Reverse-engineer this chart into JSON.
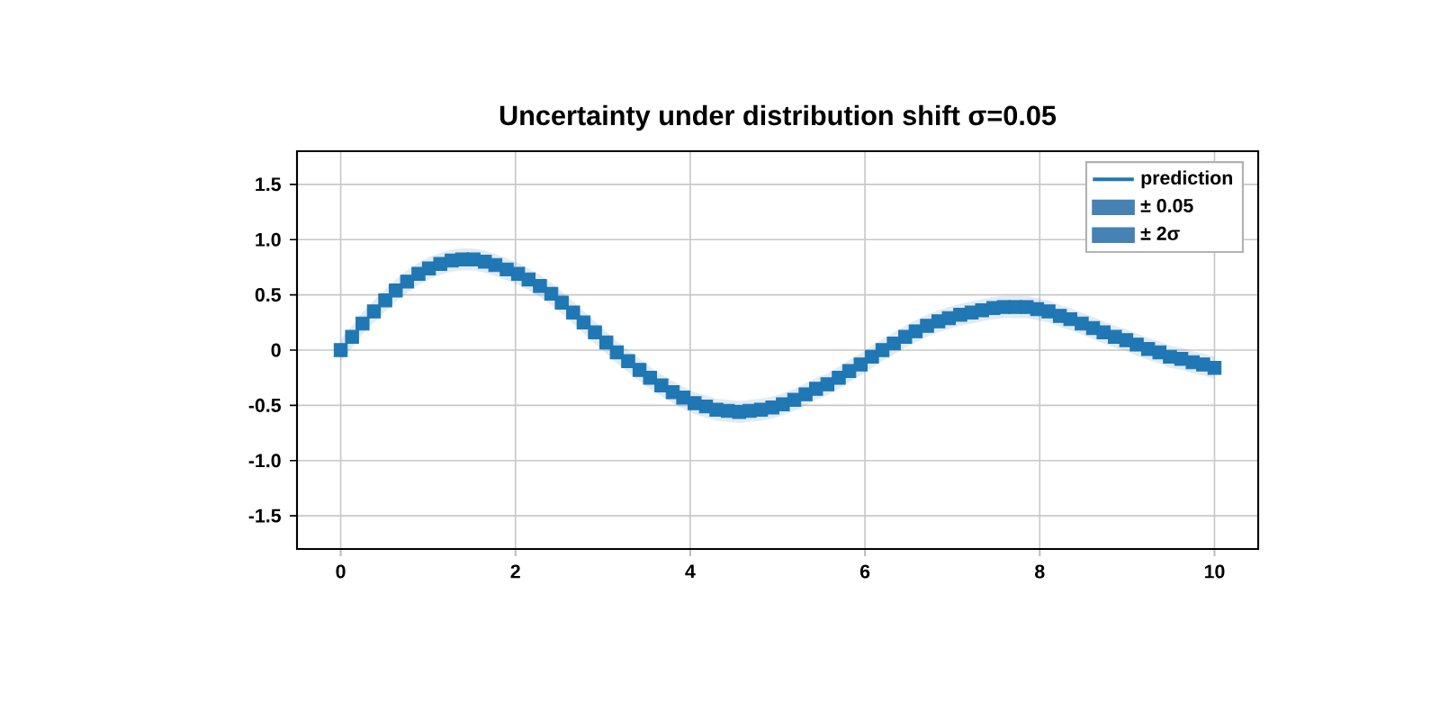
{
  "chart_data": {
    "type": "scatter",
    "title": "Uncertainty under distribution shift  σ=0.05",
    "x": [
      0,
      0.13,
      0.25,
      0.38,
      0.51,
      0.63,
      0.76,
      0.89,
      1.01,
      1.14,
      1.27,
      1.39,
      1.52,
      1.65,
      1.77,
      1.9,
      2.03,
      2.15,
      2.28,
      2.41,
      2.53,
      2.66,
      2.78,
      2.91,
      3.04,
      3.16,
      3.29,
      3.42,
      3.54,
      3.67,
      3.8,
      3.92,
      4.05,
      4.18,
      4.3,
      4.43,
      4.56,
      4.68,
      4.81,
      4.94,
      5.06,
      5.19,
      5.32,
      5.44,
      5.57,
      5.7,
      5.82,
      5.95,
      6.08,
      6.2,
      6.33,
      6.46,
      6.58,
      6.71,
      6.84,
      6.96,
      7.09,
      7.22,
      7.34,
      7.47,
      7.59,
      7.72,
      7.85,
      7.97,
      8.1,
      8.23,
      8.35,
      8.48,
      8.61,
      8.73,
      8.86,
      8.99,
      9.11,
      9.24,
      9.37,
      9.49,
      9.62,
      9.75,
      9.87,
      10
    ],
    "series": [
      {
        "name": "prediction",
        "color": "#1f77b4",
        "marker": "square",
        "values": [
          0,
          0.12,
          0.24,
          0.35,
          0.45,
          0.54,
          0.62,
          0.69,
          0.74,
          0.78,
          0.81,
          0.82,
          0.82,
          0.8,
          0.77,
          0.73,
          0.69,
          0.64,
          0.58,
          0.51,
          0.43,
          0.34,
          0.25,
          0.16,
          0.07,
          -0.02,
          -0.1,
          -0.18,
          -0.25,
          -0.32,
          -0.38,
          -0.43,
          -0.48,
          -0.51,
          -0.54,
          -0.55,
          -0.56,
          -0.55,
          -0.54,
          -0.52,
          -0.49,
          -0.45,
          -0.4,
          -0.35,
          -0.31,
          -0.25,
          -0.19,
          -0.13,
          -0.06,
          0,
          0.06,
          0.12,
          0.17,
          0.22,
          0.26,
          0.29,
          0.32,
          0.34,
          0.36,
          0.38,
          0.39,
          0.39,
          0.39,
          0.37,
          0.35,
          0.31,
          0.28,
          0.24,
          0.2,
          0.16,
          0.12,
          0.09,
          0.05,
          0.01,
          -0.02,
          -0.06,
          -0.08,
          -0.11,
          -0.13,
          -0.16
        ]
      },
      {
        "name": "± 0.05",
        "type": "area",
        "color": "#4682b4",
        "values": [
          null,
          null,
          null,
          null,
          null,
          null,
          null,
          null,
          null,
          null,
          null,
          null,
          null,
          null,
          null,
          null,
          null,
          null,
          null,
          null,
          null,
          null,
          null,
          null,
          null,
          null,
          null,
          null,
          null,
          null,
          null,
          null,
          null,
          null,
          null,
          null,
          null,
          null,
          null,
          null,
          null,
          null,
          null,
          null,
          null,
          null,
          null,
          null,
          null,
          null,
          null,
          null,
          null,
          null,
          null,
          null,
          null,
          null,
          null,
          null,
          null,
          null,
          null,
          null,
          null,
          null,
          null,
          null,
          null,
          null,
          null,
          null,
          null,
          null,
          null,
          null,
          null,
          null,
          null,
          null
        ]
      },
      {
        "name": "± 2σ",
        "type": "area",
        "color": "#4682b4",
        "values": [
          null,
          null,
          null,
          null,
          null,
          null,
          null,
          null,
          null,
          null,
          null,
          null,
          null,
          null,
          null,
          null,
          null,
          null,
          null,
          null,
          null,
          null,
          null,
          null,
          null,
          null,
          null,
          null,
          null,
          null,
          null,
          null,
          null,
          null,
          null,
          null,
          null,
          null,
          null,
          null,
          null,
          null,
          null,
          null,
          null,
          null,
          null,
          null,
          null,
          null,
          null,
          null,
          null,
          null,
          null,
          null,
          null,
          null,
          null,
          null,
          null,
          null,
          null,
          null,
          null,
          null,
          null,
          null,
          null,
          null,
          null,
          null,
          null,
          null,
          null,
          null,
          null,
          null,
          null,
          null
        ],
        "upper": [
          0.1,
          0.22,
          0.34,
          0.45,
          0.55,
          0.64,
          0.72,
          0.79,
          0.84,
          0.88,
          0.91,
          0.92,
          0.92,
          0.9,
          0.87,
          0.83,
          0.79,
          0.74,
          0.68,
          0.61,
          0.53,
          0.44,
          0.35,
          0.26,
          0.17,
          0.08,
          0,
          -0.08,
          -0.15,
          -0.22,
          -0.28,
          -0.33,
          -0.38,
          -0.41,
          -0.44,
          -0.45,
          -0.46,
          -0.45,
          -0.44,
          -0.42,
          -0.39,
          -0.35,
          -0.3,
          -0.25,
          -0.21,
          -0.15,
          -0.09,
          -0.03,
          0.04,
          0.1,
          0.16,
          0.22,
          0.27,
          0.32,
          0.36,
          0.39,
          0.42,
          0.44,
          0.46,
          0.48,
          0.49,
          0.49,
          0.49,
          0.47,
          0.45,
          0.41,
          0.38,
          0.34,
          0.3,
          0.26,
          0.22,
          0.19,
          0.15,
          0.11,
          0.08,
          0.04,
          0.02,
          -0.01,
          -0.03,
          -0.06
        ],
        "lower": [
          -0.1,
          0.02,
          0.14,
          0.25,
          0.35,
          0.44,
          0.52,
          0.59,
          0.64,
          0.68,
          0.71,
          0.72,
          0.72,
          0.7,
          0.67,
          0.63,
          0.59,
          0.54,
          0.48,
          0.41,
          0.33,
          0.24,
          0.15,
          0.06,
          -0.03,
          -0.12,
          -0.2,
          -0.28,
          -0.35,
          -0.42,
          -0.48,
          -0.53,
          -0.58,
          -0.61,
          -0.64,
          -0.65,
          -0.66,
          -0.65,
          -0.64,
          -0.62,
          -0.59,
          -0.55,
          -0.5,
          -0.45,
          -0.41,
          -0.35,
          -0.29,
          -0.23,
          -0.16,
          -0.1,
          -0.04,
          0.02,
          0.07,
          0.12,
          0.16,
          0.19,
          0.22,
          0.24,
          0.26,
          0.28,
          0.29,
          0.29,
          0.29,
          0.27,
          0.25,
          0.21,
          0.18,
          0.14,
          0.1,
          0.06,
          0.02,
          -0.01,
          -0.05,
          -0.09,
          -0.12,
          -0.16,
          -0.18,
          -0.21,
          -0.23,
          -0.26
        ]
      }
    ],
    "xlim": [
      -0.5,
      10.5
    ],
    "xticks": [
      0,
      2,
      4,
      6,
      8,
      10
    ],
    "ylim": [
      -1.8,
      1.8
    ],
    "yticks": [
      -1.5,
      {
        "value": -1,
        "label": "-1.0"
      },
      -0.5,
      0,
      0.5,
      {
        "value": 1,
        "label": "1.0"
      },
      1.5
    ],
    "grid": true,
    "legend": "top right"
  }
}
